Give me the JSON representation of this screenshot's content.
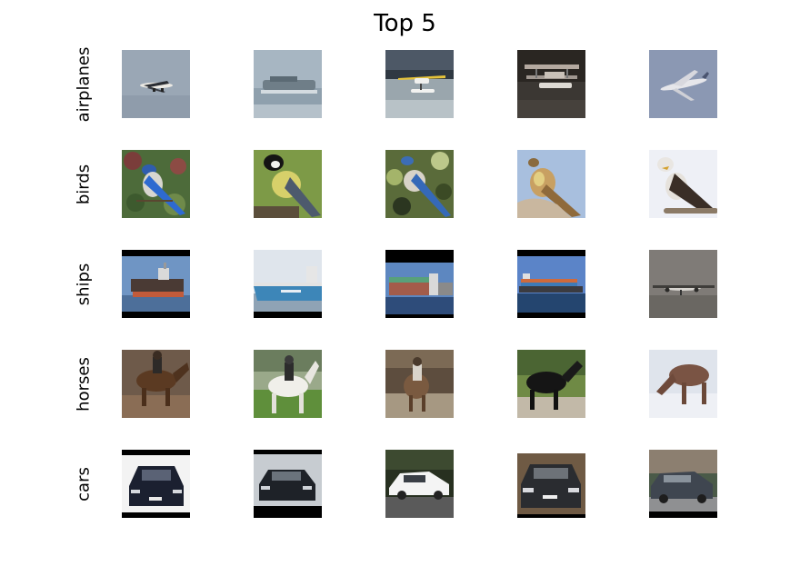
{
  "title": "Top 5",
  "rows": [
    {
      "label": "airplanes",
      "images": [
        {
          "subject": "airliner in flight against grey sky"
        },
        {
          "subject": "hovercraft on misty water"
        },
        {
          "subject": "yellow seaplane on water"
        },
        {
          "subject": "floatplane at dock in dark water"
        },
        {
          "subject": "jumbo jet in flight"
        }
      ]
    },
    {
      "label": "birds",
      "images": [
        {
          "subject": "blue jay perched in foliage"
        },
        {
          "subject": "great tit on green background"
        },
        {
          "subject": "scrub jay on branch among leaves"
        },
        {
          "subject": "meadowlark on rock, blue sky"
        },
        {
          "subject": "eagle perched on branch"
        }
      ]
    },
    {
      "label": "ships",
      "images": [
        {
          "subject": "cargo ship at sea, letterboxed"
        },
        {
          "subject": "Maersk container ship"
        },
        {
          "subject": "container ship at port, letterboxed"
        },
        {
          "subject": "container ship, letterboxed"
        },
        {
          "subject": "propeller airplane against grey sky"
        }
      ]
    },
    {
      "label": "horses",
      "images": [
        {
          "subject": "rodeo rider on brown horse"
        },
        {
          "subject": "rider on white horse"
        },
        {
          "subject": "rodeo rider in arena"
        },
        {
          "subject": "black horse on grass"
        },
        {
          "subject": "horse grazing in snow"
        }
      ]
    },
    {
      "label": "cars",
      "images": [
        {
          "subject": "black BMW sedan, front"
        },
        {
          "subject": "black sedan parked, letterboxed"
        },
        {
          "subject": "white hatchback on track"
        },
        {
          "subject": "dark sedan, front"
        },
        {
          "subject": "dark hatchback on road"
        }
      ]
    }
  ]
}
